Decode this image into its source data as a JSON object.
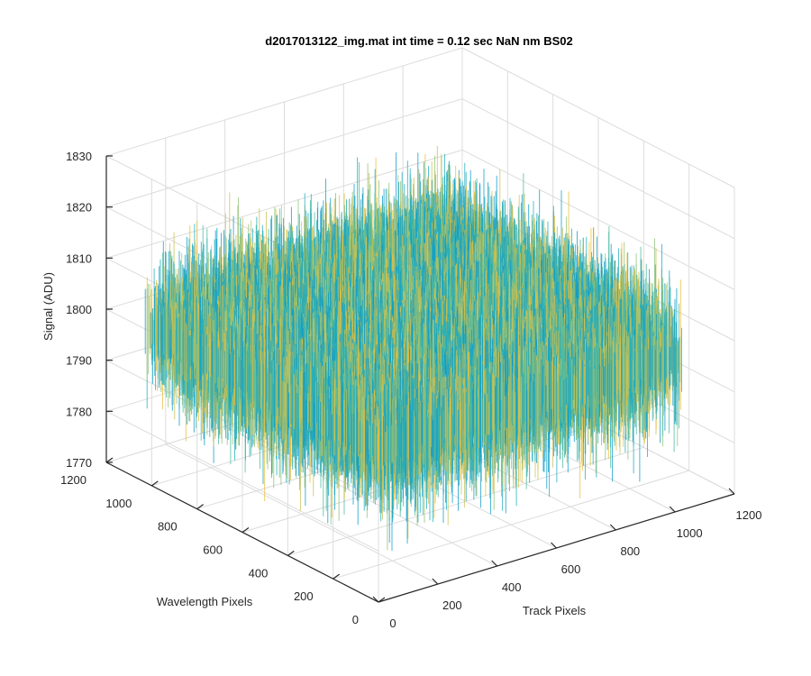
{
  "chart_data": {
    "type": "surface",
    "title": "d2017013122_img.mat int time = 0.12 sec  NaN nm BS02",
    "xlabel": "Track Pixels",
    "ylabel": "Wavelength Pixels",
    "zlabel": "Signal (ADU)",
    "xlim": [
      0,
      1200
    ],
    "ylim": [
      0,
      1200
    ],
    "zlim": [
      1770,
      1830
    ],
    "x_ticks": [
      "0",
      "200",
      "400",
      "600",
      "800",
      "1000",
      "1200"
    ],
    "y_ticks": [
      "0",
      "200",
      "400",
      "600",
      "800",
      "1000",
      "1200"
    ],
    "z_ticks": [
      "1770",
      "1780",
      "1790",
      "1800",
      "1810",
      "1820",
      "1830"
    ],
    "grid": true,
    "surface": {
      "x_range": [
        0,
        1024
      ],
      "y_range": [
        0,
        1024
      ],
      "mean_signal": 1800,
      "noise_range": [
        1778,
        1822
      ],
      "colormap": "parula",
      "colors": [
        "#0f9ec9",
        "#20aec0",
        "#4cbaa0",
        "#8fc279",
        "#c9c157",
        "#e8bf3a"
      ]
    }
  }
}
